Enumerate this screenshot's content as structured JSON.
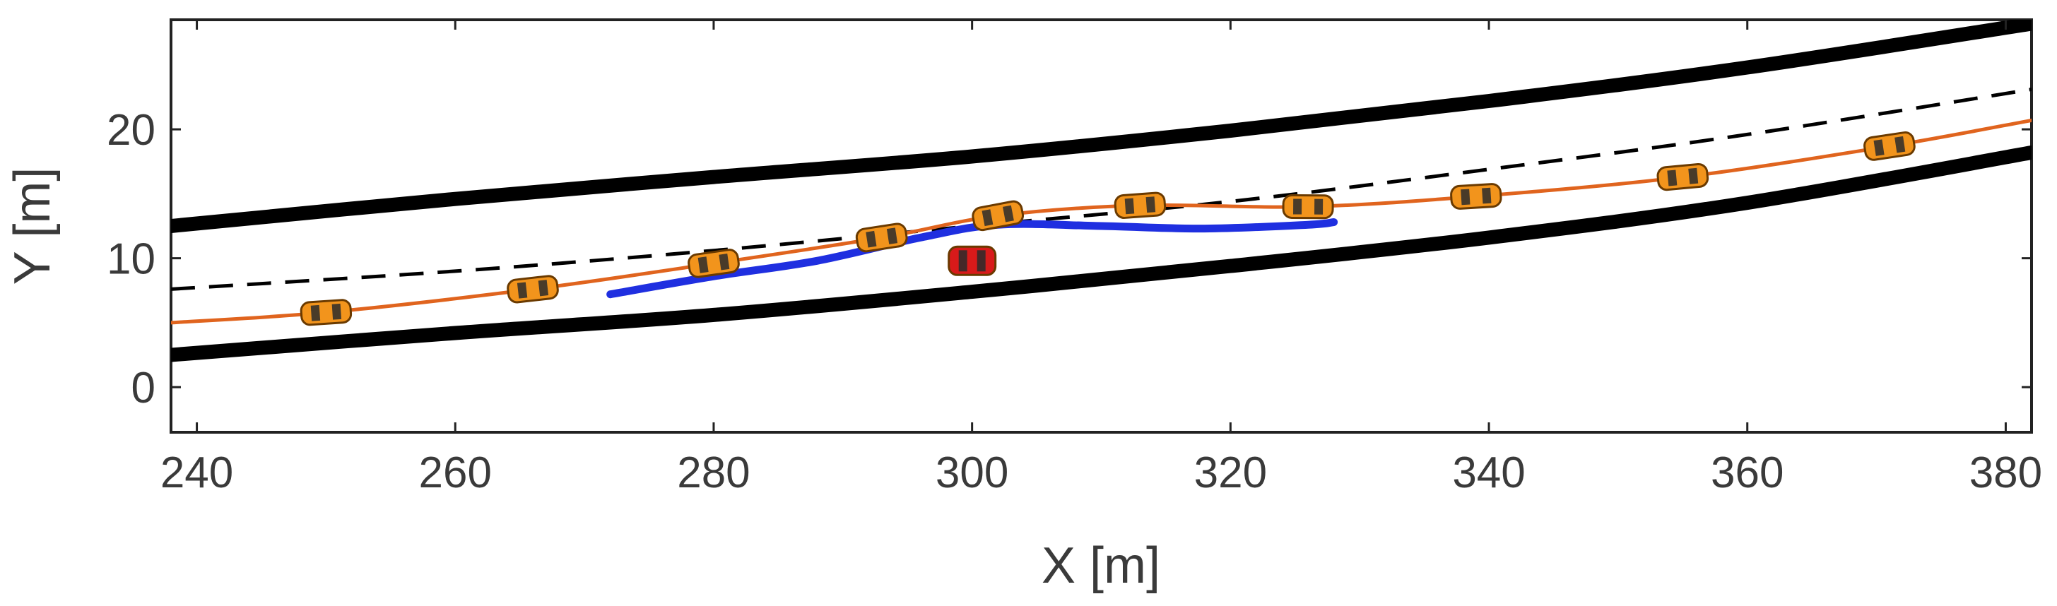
{
  "chart_data": {
    "type": "line",
    "title": "",
    "xlabel": "X [m]",
    "ylabel": "Y [m]",
    "xlim": [
      238,
      382
    ],
    "ylim": [
      -3.5,
      28.5
    ],
    "xticks": [
      240,
      260,
      280,
      300,
      320,
      340,
      360,
      380
    ],
    "yticks": [
      0,
      10,
      20
    ],
    "grid": false,
    "legend": "none",
    "colors": {
      "road_edge": "#000000",
      "center_line": "#000000",
      "trajectory": "#e0641e",
      "predicted_path": "#1f2fe0",
      "ego_vehicle": "#f2941c",
      "obstacle_vehicle": "#d81a1a"
    },
    "series": [
      {
        "name": "road-upper-edge",
        "style": "solid-thick",
        "x": [
          238,
          260,
          280,
          300,
          320,
          340,
          360,
          382
        ],
        "y": [
          12.5,
          14.6,
          16.3,
          17.9,
          19.9,
          22.2,
          24.8,
          28.2
        ]
      },
      {
        "name": "road-lower-edge",
        "style": "solid-thick",
        "x": [
          238,
          260,
          280,
          300,
          320,
          340,
          360,
          382
        ],
        "y": [
          2.5,
          4.2,
          5.6,
          7.4,
          9.4,
          11.6,
          14.3,
          18.2
        ]
      },
      {
        "name": "lane-center-line",
        "style": "dashed",
        "x": [
          238,
          260,
          280,
          300,
          320,
          340,
          360,
          382
        ],
        "y": [
          7.6,
          9.0,
          10.6,
          12.5,
          14.4,
          16.9,
          19.6,
          23.1
        ]
      },
      {
        "name": "ego-trajectory",
        "style": "solid",
        "x": [
          238,
          250,
          266,
          280,
          293,
          302,
          313,
          326,
          339,
          355,
          371,
          382
        ],
        "y": [
          5.0,
          5.8,
          7.6,
          9.6,
          11.6,
          13.3,
          14.1,
          14.0,
          14.8,
          16.3,
          18.7,
          20.7
        ]
      },
      {
        "name": "predicted-path",
        "style": "solid",
        "x": [
          272,
          280,
          288,
          296,
          302,
          310,
          318,
          326,
          328
        ],
        "y": [
          7.2,
          8.6,
          9.8,
          11.6,
          12.6,
          12.5,
          12.3,
          12.6,
          12.8
        ]
      }
    ],
    "vehicles": [
      {
        "x": 250,
        "y": 5.8,
        "type": "ego"
      },
      {
        "x": 266,
        "y": 7.6,
        "type": "ego"
      },
      {
        "x": 280,
        "y": 9.6,
        "type": "ego"
      },
      {
        "x": 293,
        "y": 11.6,
        "type": "ego"
      },
      {
        "x": 302,
        "y": 13.3,
        "type": "ego"
      },
      {
        "x": 313,
        "y": 14.1,
        "type": "ego"
      },
      {
        "x": 326,
        "y": 14.0,
        "type": "ego"
      },
      {
        "x": 339,
        "y": 14.8,
        "type": "ego"
      },
      {
        "x": 355,
        "y": 16.3,
        "type": "ego"
      },
      {
        "x": 371,
        "y": 18.7,
        "type": "ego"
      },
      {
        "x": 300,
        "y": 9.8,
        "type": "obstacle"
      }
    ]
  }
}
